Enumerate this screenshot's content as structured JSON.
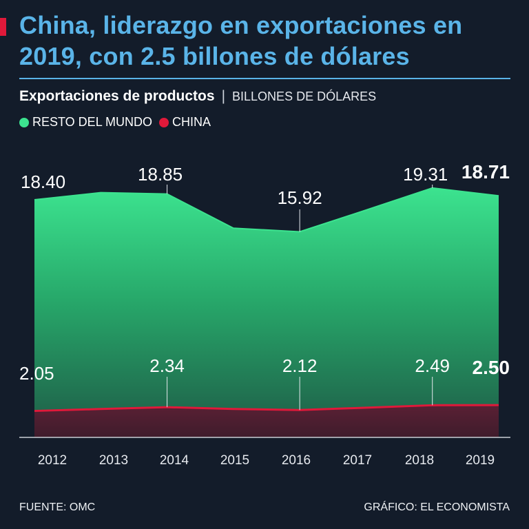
{
  "header": {
    "title": "China, liderazgo en exportaciones en 2019, con 2.5 billones de dólares",
    "subtitle": "Exportaciones de productos",
    "separator": "|",
    "unit": "BILLONES DE DÓLARES"
  },
  "legend": [
    {
      "label": "RESTO DEL MUNDO",
      "color": "#3ce38f"
    },
    {
      "label": "CHINA",
      "color": "#e0193a"
    }
  ],
  "footer": {
    "source": "FUENTE: OMC",
    "credit": "GRÁFICO: EL ECONOMISTA"
  },
  "colors": {
    "background": "#131c2a",
    "accent": "#e0193a",
    "rule": "#5ab4e8",
    "title": "#5ab4e8"
  },
  "chart_data": {
    "type": "area",
    "x": [
      "2012",
      "2013",
      "2014",
      "2015",
      "2016",
      "2017",
      "2018",
      "2019"
    ],
    "ylim": [
      0,
      24
    ],
    "grid": false,
    "legend_position": "top-left",
    "series": [
      {
        "name": "RESTO DEL MUNDO",
        "values": [
          18.4,
          18.95,
          18.85,
          16.2,
          15.92,
          17.6,
          19.31,
          18.71
        ],
        "labels": [
          "18.40",
          "",
          "18.85",
          "",
          "15.92",
          "",
          "19.31",
          "18.71"
        ]
      },
      {
        "name": "CHINA",
        "values": [
          2.05,
          2.2,
          2.34,
          2.2,
          2.12,
          2.3,
          2.49,
          2.5
        ],
        "labels": [
          "2.05",
          "",
          "2.34",
          "",
          "2.12",
          "",
          "2.49",
          "2.50"
        ]
      }
    ]
  }
}
